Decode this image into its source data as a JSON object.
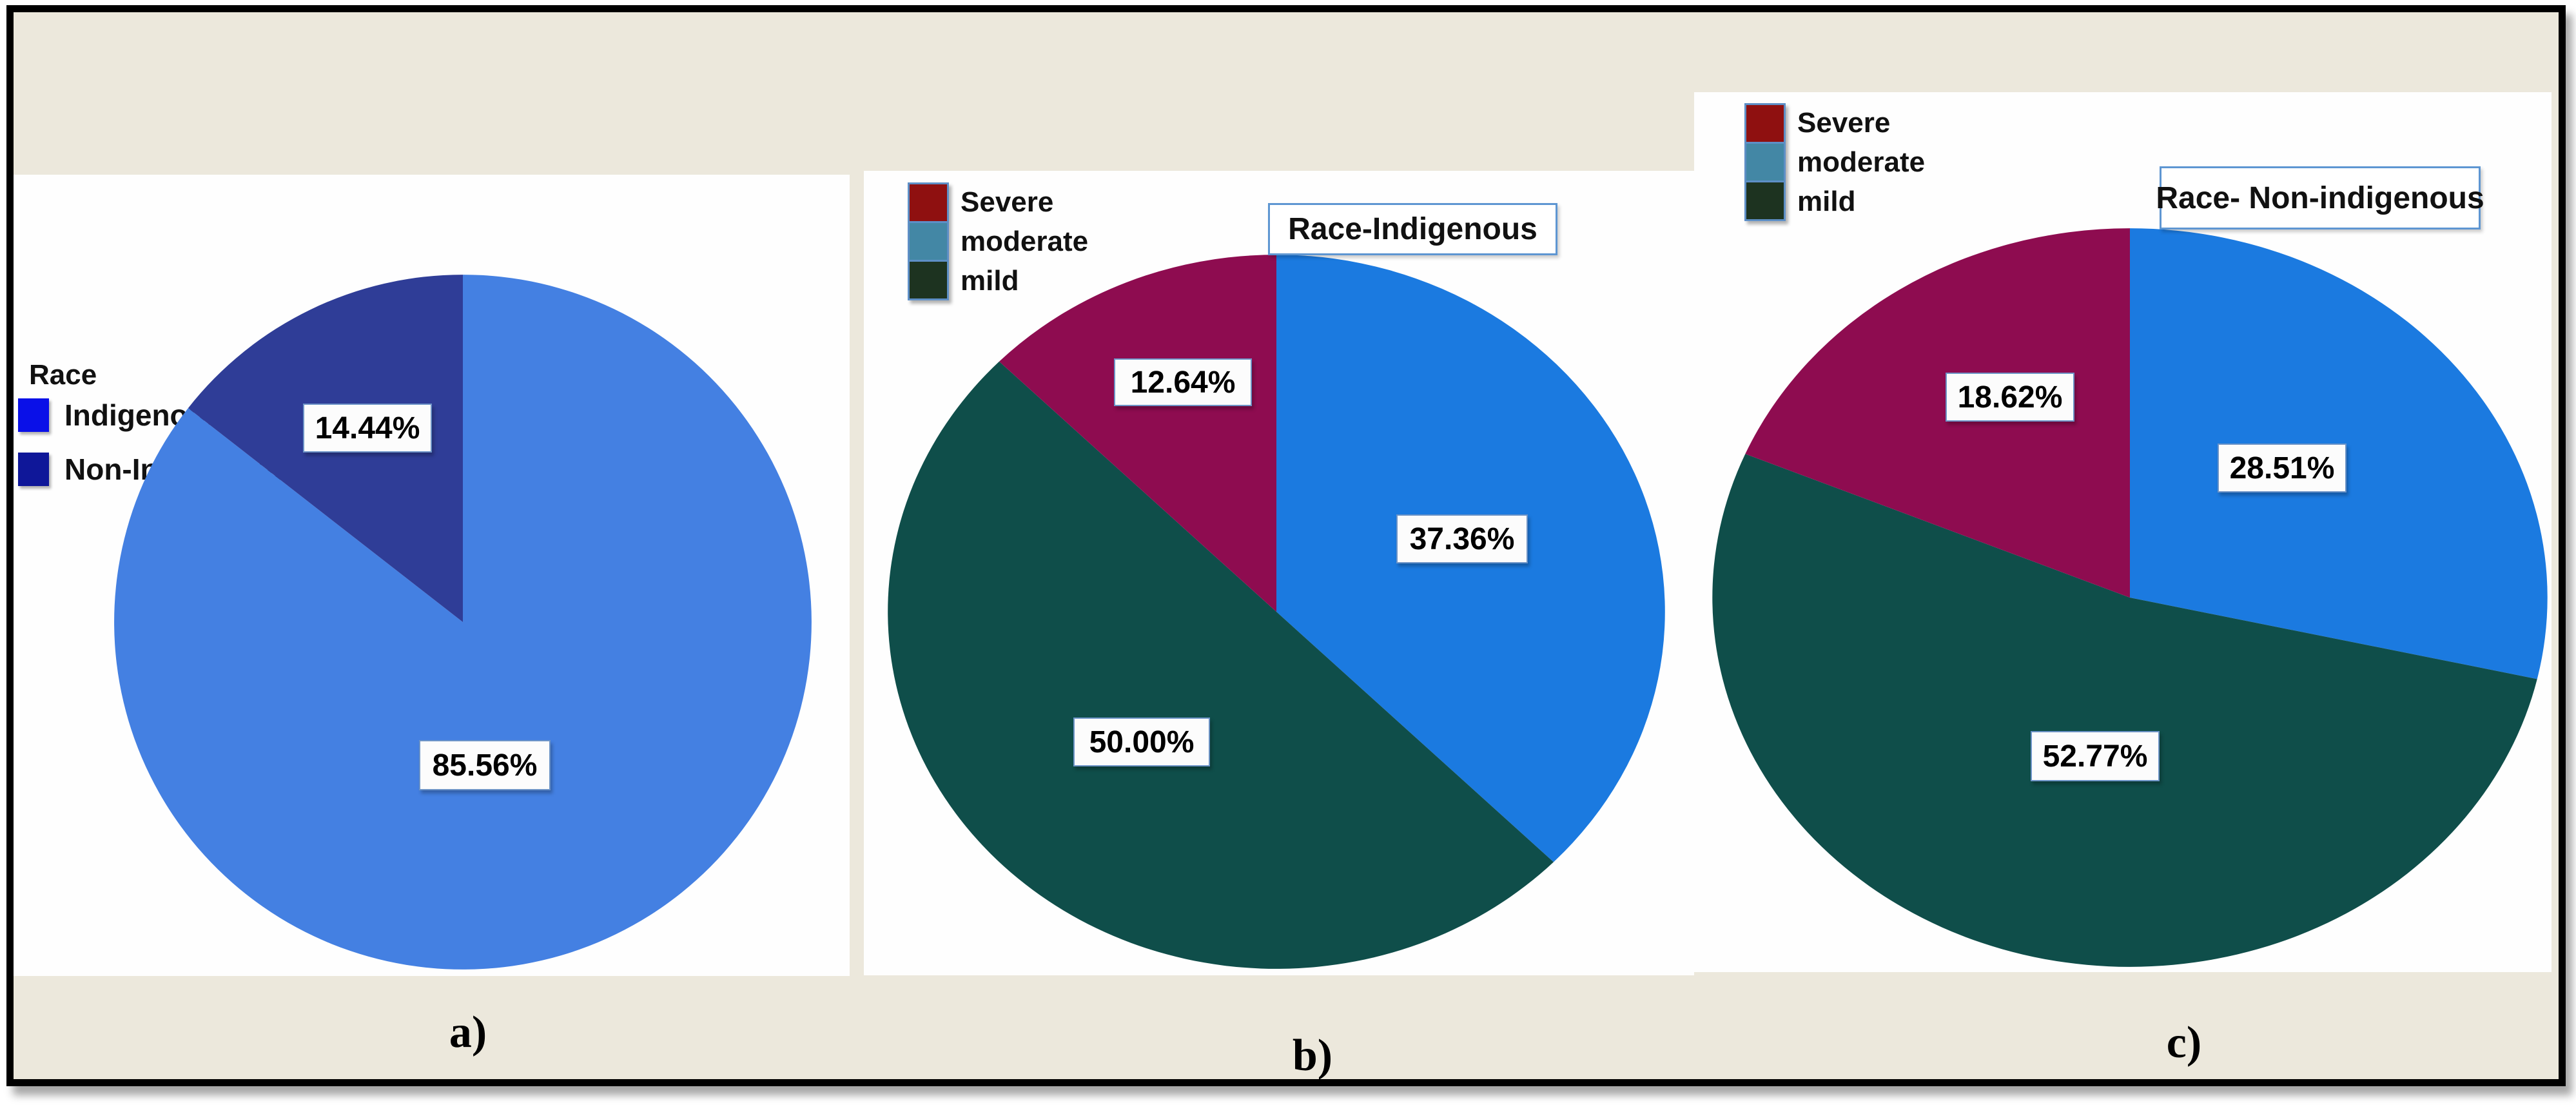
{
  "figure": {
    "description": "Three pie charts: overall race distribution and anemia severity by race",
    "canvas_bg": "#ECE8DC",
    "frame_border": "#000000",
    "panel_bg": "#FFFFFF"
  },
  "colors": {
    "pct_box_border": "#6D94C7",
    "title_box_border": "#5E96D2",
    "legend_swatch_border": "#5E8FC6"
  },
  "chart_data": [
    {
      "type": "pie",
      "panel": "a",
      "caption": "a)",
      "legend_title": "Race",
      "start": "top",
      "direction": "clockwise",
      "legend": [
        {
          "label": "Indigenous (I)",
          "color": "#0A10E8"
        },
        {
          "label": "Non-Indigenous (NI)",
          "color": "#0F1799"
        }
      ],
      "slices": [
        {
          "label": "Indigenous (I)",
          "value": 85.56,
          "display": "85.56%",
          "color": "#4480E2"
        },
        {
          "label": "Non-Indigenous (NI)",
          "value": 14.44,
          "display": "14.44%",
          "color": "#2F3D97"
        }
      ]
    },
    {
      "type": "pie",
      "panel": "b",
      "caption": "b)",
      "title": "Race-Indigenous",
      "start": "top",
      "direction": "clockwise",
      "legend": [
        {
          "label": "Severe",
          "color": "#8F1010"
        },
        {
          "label": "moderate",
          "color": "#4387A5"
        },
        {
          "label": "mild",
          "color": "#1D3320"
        }
      ],
      "slices": [
        {
          "label": "moderate",
          "value": 37.36,
          "display": "37.36%",
          "color": "#1B7AE0"
        },
        {
          "label": "mild",
          "value": 50.0,
          "display": "50.00%",
          "color": "#0F4E4A"
        },
        {
          "label": "Severe",
          "value": 12.64,
          "display": "12.64%",
          "color": "#8E0C50"
        }
      ]
    },
    {
      "type": "pie",
      "panel": "c",
      "caption": "c)",
      "title": "Race- Non-indigenous",
      "start": "top",
      "direction": "clockwise",
      "legend": [
        {
          "label": "Severe",
          "color": "#8F1010"
        },
        {
          "label": "moderate",
          "color": "#4387A5"
        },
        {
          "label": "mild",
          "color": "#1D3320"
        }
      ],
      "slices": [
        {
          "label": "moderate",
          "value": 28.51,
          "display": "28.51%",
          "color": "#1B7AE0"
        },
        {
          "label": "mild",
          "value": 52.77,
          "display": "52.77%",
          "color": "#0F4E4A"
        },
        {
          "label": "Severe",
          "value": 18.62,
          "display": "18.62%",
          "color": "#8E0C50"
        }
      ]
    }
  ]
}
